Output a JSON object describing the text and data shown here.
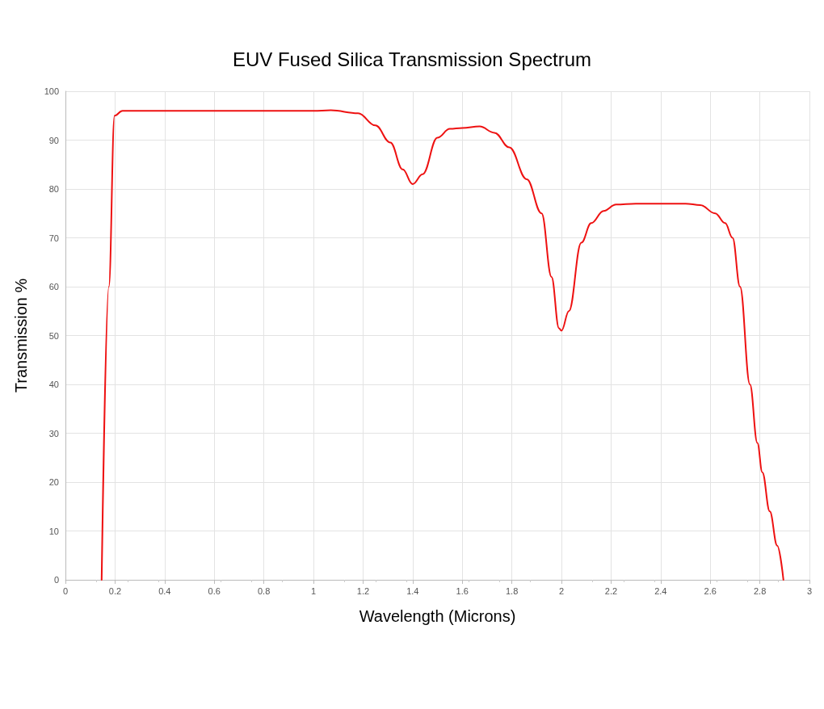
{
  "chart_data": {
    "type": "line",
    "title": "EUV Fused Silica Transmission Spectrum",
    "xlabel": "Wavelength (Microns)",
    "ylabel": "Transmission %",
    "x": [
      0.146,
      0.175,
      0.198,
      0.23,
      0.4,
      0.6,
      0.8,
      1.0,
      1.07,
      1.18,
      1.25,
      1.31,
      1.36,
      1.4,
      1.44,
      1.5,
      1.55,
      1.6,
      1.67,
      1.73,
      1.79,
      1.86,
      1.92,
      1.96,
      1.99,
      2.0,
      2.03,
      2.08,
      2.12,
      2.17,
      2.22,
      2.3,
      2.4,
      2.5,
      2.56,
      2.62,
      2.66,
      2.69,
      2.72,
      2.76,
      2.79,
      2.81,
      2.84,
      2.87,
      2.895
    ],
    "series": [
      {
        "color": "#ee1111",
        "values": [
          0,
          60,
          95,
          96,
          96,
          96,
          96,
          96,
          96.1,
          95.5,
          93,
          89.5,
          84,
          81,
          83,
          90.5,
          92.3,
          92.5,
          92.8,
          91.5,
          88.5,
          82,
          75,
          62,
          51.5,
          51,
          55,
          69,
          73,
          75.5,
          76.8,
          77,
          77,
          77,
          76.7,
          75,
          73,
          70,
          60,
          40,
          28,
          22,
          14,
          7,
          0
        ]
      }
    ],
    "xlim": [
      0,
      3
    ],
    "xticks": [
      0,
      0.2,
      0.4,
      0.6,
      0.8,
      1,
      1.2,
      1.4,
      1.6,
      1.8,
      2,
      2.2,
      2.4,
      2.6,
      2.8,
      3
    ],
    "ylim": [
      0,
      100
    ],
    "yticks": [
      0,
      10,
      20,
      30,
      40,
      50,
      60,
      70,
      80,
      90,
      100
    ],
    "grid": true,
    "marker": "none",
    "line_style": "solid"
  }
}
